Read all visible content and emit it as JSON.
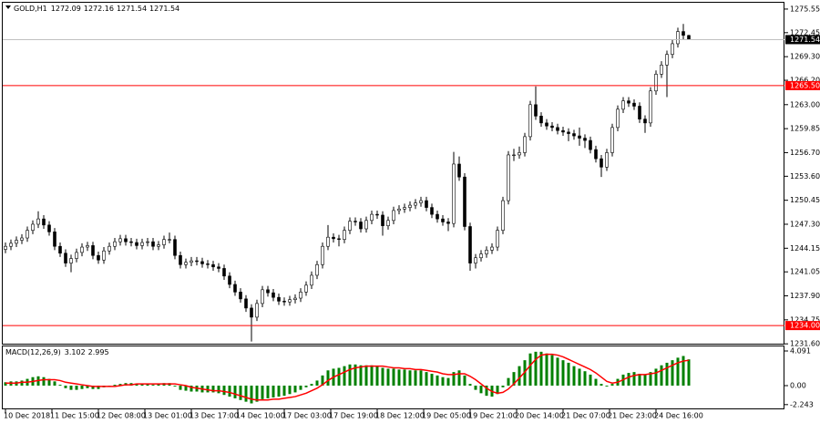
{
  "chart_data": [
    {
      "type": "candlestick",
      "title": "GOLD,H1",
      "open": [
        1244.0,
        1244.4,
        1244.8,
        1245.2,
        1245.5,
        1246.5,
        1247.3,
        1248.0,
        1247.2,
        1246.3,
        1244.4,
        1243.5,
        1242.2,
        1242.8,
        1243.6,
        1244.3,
        1244.5,
        1243.2,
        1242.6,
        1243.8,
        1244.4,
        1245.0,
        1245.4,
        1245.0,
        1244.9,
        1244.5,
        1244.9,
        1245.0,
        1244.4,
        1244.6,
        1245.3,
        1245.3,
        1243.2,
        1242.0,
        1242.3,
        1242.5,
        1242.4,
        1242.1,
        1242.0,
        1241.7,
        1241.5,
        1240.5,
        1239.4,
        1238.4,
        1237.5,
        1236.3,
        1235.1,
        1236.9,
        1238.7,
        1238.3,
        1237.7,
        1237.2,
        1237.1,
        1237.4,
        1237.6,
        1238.4,
        1239.3,
        1240.6,
        1242.0,
        1244.4,
        1245.6,
        1245.4,
        1245.3,
        1246.5,
        1247.7,
        1247.6,
        1246.7,
        1247.8,
        1248.6,
        1248.5,
        1247.1,
        1247.8,
        1249.1,
        1249.3,
        1249.5,
        1249.8,
        1250.1,
        1250.4,
        1249.5,
        1248.6,
        1248.0,
        1247.6,
        1247.4,
        1255.2,
        1253.5,
        1247.0,
        1242.2,
        1242.9,
        1243.4,
        1243.9,
        1244.3,
        1246.5,
        1250.4,
        1256.4,
        1256.4,
        1256.7,
        1258.8,
        1263.0,
        1261.5,
        1260.6,
        1260.2,
        1260.0,
        1259.6,
        1259.4,
        1259.2,
        1258.9,
        1258.6,
        1258.3,
        1257.1,
        1255.9,
        1254.8,
        1256.7,
        1260.0,
        1262.4,
        1263.5,
        1263.2,
        1262.8,
        1261.1,
        1260.6,
        1264.8,
        1267.0,
        1268.2,
        1269.6,
        1271.0,
        1272.6,
        1272.09
      ],
      "high": [
        1244.9,
        1245.3,
        1245.7,
        1246.0,
        1247.0,
        1247.8,
        1249.0,
        1248.5,
        1247.7,
        1246.8,
        1244.9,
        1244.0,
        1243.3,
        1244.1,
        1244.8,
        1245.0,
        1245.0,
        1243.7,
        1244.3,
        1244.9,
        1245.5,
        1245.9,
        1245.9,
        1245.5,
        1245.4,
        1245.4,
        1245.5,
        1245.5,
        1245.1,
        1245.8,
        1246.2,
        1245.8,
        1243.7,
        1242.8,
        1243.0,
        1243.0,
        1242.9,
        1242.6,
        1242.5,
        1242.2,
        1242.0,
        1241.0,
        1239.9,
        1238.9,
        1238.0,
        1236.8,
        1237.4,
        1239.2,
        1239.2,
        1238.8,
        1238.2,
        1237.7,
        1237.9,
        1238.1,
        1238.9,
        1239.8,
        1241.1,
        1242.5,
        1244.9,
        1247.2,
        1246.1,
        1245.9,
        1247.0,
        1248.2,
        1248.2,
        1248.1,
        1248.3,
        1249.1,
        1249.1,
        1249.0,
        1248.3,
        1249.6,
        1249.8,
        1250.0,
        1250.3,
        1250.6,
        1250.9,
        1250.9,
        1250.0,
        1249.1,
        1248.5,
        1248.1,
        1256.8,
        1256.2,
        1254.0,
        1247.5,
        1243.4,
        1243.9,
        1244.4,
        1244.8,
        1247.0,
        1250.9,
        1256.9,
        1257.2,
        1257.5,
        1259.3,
        1263.5,
        1265.4,
        1262.0,
        1261.1,
        1260.7,
        1260.5,
        1260.1,
        1259.9,
        1259.7,
        1260.0,
        1259.1,
        1258.8,
        1257.6,
        1256.4,
        1257.2,
        1260.5,
        1262.9,
        1264.0,
        1264.0,
        1263.7,
        1263.3,
        1261.6,
        1265.3,
        1267.5,
        1268.7,
        1270.1,
        1271.5,
        1273.1,
        1273.6,
        1272.16
      ],
      "low": [
        1243.5,
        1243.9,
        1244.3,
        1244.7,
        1245.0,
        1246.0,
        1246.8,
        1246.7,
        1245.8,
        1243.9,
        1243.0,
        1241.7,
        1241.0,
        1242.3,
        1243.1,
        1243.8,
        1242.7,
        1242.1,
        1242.1,
        1243.3,
        1243.9,
        1244.5,
        1244.5,
        1244.4,
        1244.0,
        1244.0,
        1244.4,
        1243.9,
        1243.9,
        1244.1,
        1244.8,
        1242.7,
        1241.5,
        1241.5,
        1241.8,
        1241.9,
        1241.6,
        1241.5,
        1241.2,
        1241.0,
        1240.0,
        1238.9,
        1237.9,
        1237.0,
        1235.8,
        1231.9,
        1234.6,
        1236.4,
        1237.8,
        1237.2,
        1236.7,
        1236.6,
        1236.6,
        1236.9,
        1237.1,
        1237.9,
        1238.8,
        1240.1,
        1241.5,
        1243.9,
        1244.9,
        1244.4,
        1244.8,
        1246.0,
        1247.1,
        1246.2,
        1246.2,
        1247.3,
        1248.0,
        1245.8,
        1246.6,
        1247.3,
        1248.6,
        1248.8,
        1249.0,
        1249.3,
        1249.6,
        1249.0,
        1248.1,
        1247.5,
        1247.1,
        1246.4,
        1246.9,
        1253.0,
        1246.5,
        1241.2,
        1241.5,
        1242.4,
        1242.9,
        1243.4,
        1243.8,
        1246.0,
        1249.9,
        1255.6,
        1255.9,
        1256.2,
        1258.3,
        1261.0,
        1260.1,
        1259.7,
        1259.5,
        1259.1,
        1258.9,
        1258.2,
        1258.4,
        1257.6,
        1257.3,
        1256.6,
        1255.4,
        1253.5,
        1254.3,
        1256.2,
        1259.5,
        1261.9,
        1262.7,
        1262.3,
        1260.6,
        1259.3,
        1260.1,
        1264.3,
        1266.5,
        1264.0,
        1269.1,
        1270.5,
        1271.6,
        1271.54
      ],
      "close": [
        1244.4,
        1244.8,
        1245.2,
        1245.5,
        1246.5,
        1247.3,
        1248.0,
        1247.2,
        1246.3,
        1244.4,
        1243.5,
        1242.2,
        1242.8,
        1243.6,
        1244.3,
        1244.5,
        1243.2,
        1242.6,
        1243.8,
        1244.4,
        1245.0,
        1245.4,
        1245.0,
        1244.9,
        1244.5,
        1244.9,
        1245.0,
        1244.4,
        1244.6,
        1245.3,
        1245.3,
        1243.2,
        1242.0,
        1242.3,
        1242.5,
        1242.4,
        1242.1,
        1242.0,
        1241.7,
        1241.5,
        1240.5,
        1239.4,
        1238.4,
        1237.5,
        1236.3,
        1235.1,
        1236.9,
        1238.7,
        1238.3,
        1237.7,
        1237.2,
        1237.1,
        1237.4,
        1237.6,
        1238.4,
        1239.3,
        1240.6,
        1242.0,
        1244.4,
        1245.6,
        1245.4,
        1245.3,
        1246.5,
        1247.7,
        1247.6,
        1246.7,
        1247.8,
        1248.6,
        1248.5,
        1247.1,
        1247.8,
        1249.1,
        1249.3,
        1249.5,
        1249.8,
        1250.1,
        1250.4,
        1249.5,
        1248.6,
        1248.0,
        1247.6,
        1247.4,
        1255.2,
        1253.5,
        1247.0,
        1242.2,
        1242.9,
        1243.4,
        1243.9,
        1244.3,
        1246.5,
        1250.4,
        1256.4,
        1256.4,
        1256.7,
        1258.8,
        1263.0,
        1261.5,
        1260.6,
        1260.2,
        1260.0,
        1259.6,
        1259.4,
        1259.2,
        1258.9,
        1258.6,
        1258.3,
        1257.1,
        1255.9,
        1254.8,
        1256.7,
        1260.0,
        1262.4,
        1263.5,
        1263.2,
        1262.8,
        1261.1,
        1260.6,
        1264.8,
        1267.0,
        1268.2,
        1269.6,
        1271.0,
        1272.6,
        1272.1,
        1271.54
      ],
      "up_color": "#ffffff",
      "down_color": "#000000",
      "wick_color": "#000000",
      "ylim": [
        1231.5,
        1276.5
      ],
      "yticks": [
        1275.55,
        1272.45,
        {
          "value": 1269.3,
          "label": "1269.30"
        },
        {
          "value": 1266.2,
          "label": "1266.20"
        },
        {
          "value": 1263,
          "label": "1263.00"
        },
        1259.85,
        {
          "value": 1256.7,
          "label": "1256.70"
        },
        {
          "value": 1253.6,
          "label": "1253.60"
        },
        1250.45,
        {
          "value": 1247.3,
          "label": "1247.30"
        },
        1244.15,
        1241.05,
        {
          "value": 1237.9,
          "label": "1237.90"
        },
        1234.75,
        {
          "value": 1231.6,
          "label": "1231.60"
        }
      ],
      "xlim": [
        -0.5,
        125.5
      ],
      "xticks": [
        {
          "value": 0,
          "label": "10 Dec 2018"
        },
        {
          "value": 8.5,
          "label": "11 Dec 15:00"
        },
        {
          "value": 17,
          "label": "12 Dec 08:00"
        },
        {
          "value": 25.5,
          "label": "13 Dec 01:00"
        },
        {
          "value": 34,
          "label": "13 Dec 17:00"
        },
        {
          "value": 42.5,
          "label": "14 Dec 10:00"
        },
        {
          "value": 51,
          "label": "17 Dec 03:00"
        },
        {
          "value": 59.5,
          "label": "17 Dec 19:00"
        },
        {
          "value": 68,
          "label": "18 Dec 12:00"
        },
        {
          "value": 76.5,
          "label": "19 Dec 05:00"
        },
        {
          "value": 85,
          "label": "19 Dec 21:00"
        },
        {
          "value": 93.5,
          "label": "20 Dec 14:00"
        },
        {
          "value": 102,
          "label": "21 Dec 07:00"
        },
        {
          "value": 110.5,
          "label": "21 Dec 23:00"
        },
        {
          "value": 119,
          "label": "24 Dec 16:00"
        }
      ],
      "hlines": [
        {
          "value": 1265.5,
          "label": "1265.50"
        },
        {
          "value": 1234,
          "label": "1234.00"
        }
      ],
      "hline_color": "#ff0000",
      "price_line_color": "#c0c0c0"
    },
    {
      "type": "macd",
      "title": "MACD(12,26,9)",
      "histogram": [
        0.4,
        0.5,
        0.5,
        0.6,
        0.8,
        1.0,
        1.1,
        1.0,
        0.8,
        0.5,
        0.1,
        -0.3,
        -0.5,
        -0.5,
        -0.4,
        -0.3,
        -0.4,
        -0.4,
        -0.2,
        -0.1,
        0.1,
        0.2,
        0.3,
        0.3,
        0.2,
        0.2,
        0.2,
        0.1,
        0.2,
        0.3,
        0.3,
        -0.1,
        -0.5,
        -0.6,
        -0.7,
        -0.7,
        -0.8,
        -0.8,
        -0.8,
        -0.9,
        -1.1,
        -1.3,
        -1.5,
        -1.7,
        -1.9,
        -2.1,
        -1.9,
        -1.6,
        -1.5,
        -1.4,
        -1.3,
        -1.2,
        -1.0,
        -0.8,
        -0.5,
        -0.2,
        0.2,
        0.6,
        1.2,
        1.8,
        2.0,
        2.1,
        2.3,
        2.5,
        2.5,
        2.4,
        2.4,
        2.4,
        2.3,
        2.1,
        2.0,
        2.0,
        1.9,
        1.9,
        1.8,
        1.8,
        1.8,
        1.6,
        1.4,
        1.2,
        1.0,
        0.9,
        1.6,
        1.8,
        1.2,
        0.2,
        -0.5,
        -0.9,
        -1.2,
        -1.3,
        -1.0,
        -0.2,
        0.9,
        1.6,
        2.3,
        3.0,
        3.8,
        4.0,
        4.0,
        3.8,
        3.6,
        3.3,
        3.0,
        2.7,
        2.3,
        2.0,
        1.7,
        1.3,
        0.8,
        0.2,
        -0.1,
        0.2,
        0.8,
        1.3,
        1.5,
        1.6,
        1.4,
        1.3,
        1.6,
        2.0,
        2.4,
        2.7,
        3.0,
        3.3,
        3.5,
        3.102
      ],
      "signal": [
        0.3,
        0.3,
        0.3,
        0.4,
        0.4,
        0.5,
        0.6,
        0.7,
        0.7,
        0.7,
        0.6,
        0.4,
        0.3,
        0.2,
        0.1,
        0.0,
        -0.1,
        -0.1,
        -0.1,
        -0.1,
        -0.1,
        0.0,
        0.1,
        0.1,
        0.2,
        0.2,
        0.2,
        0.2,
        0.2,
        0.2,
        0.2,
        0.2,
        0.1,
        0.0,
        -0.2,
        -0.3,
        -0.4,
        -0.5,
        -0.6,
        -0.6,
        -0.7,
        -0.8,
        -1.0,
        -1.2,
        -1.4,
        -1.6,
        -1.7,
        -1.7,
        -1.7,
        -1.6,
        -1.6,
        -1.5,
        -1.4,
        -1.3,
        -1.1,
        -0.9,
        -0.6,
        -0.3,
        0.1,
        0.6,
        1.0,
        1.3,
        1.6,
        1.9,
        2.1,
        2.2,
        2.3,
        2.3,
        2.3,
        2.3,
        2.2,
        2.1,
        2.1,
        2.0,
        2.0,
        1.9,
        1.9,
        1.8,
        1.7,
        1.6,
        1.4,
        1.3,
        1.3,
        1.4,
        1.4,
        1.1,
        0.7,
        0.2,
        -0.3,
        -0.7,
        -0.9,
        -0.8,
        -0.4,
        0.2,
        0.9,
        1.6,
        2.4,
        3.1,
        3.6,
        3.7,
        3.7,
        3.6,
        3.4,
        3.1,
        2.8,
        2.5,
        2.2,
        1.9,
        1.5,
        1.0,
        0.5,
        0.3,
        0.4,
        0.7,
        1.0,
        1.2,
        1.3,
        1.3,
        1.4,
        1.5,
        1.8,
        2.1,
        2.4,
        2.7,
        2.9,
        2.995
      ],
      "histogram_color": "#008000",
      "signal_color": "#ff0000",
      "ylim": [
        -2.8,
        4.63
      ],
      "yticks": [
        4.091,
        {
          "value": 0,
          "label": "0.00"
        },
        -2.243
      ]
    }
  ]
}
